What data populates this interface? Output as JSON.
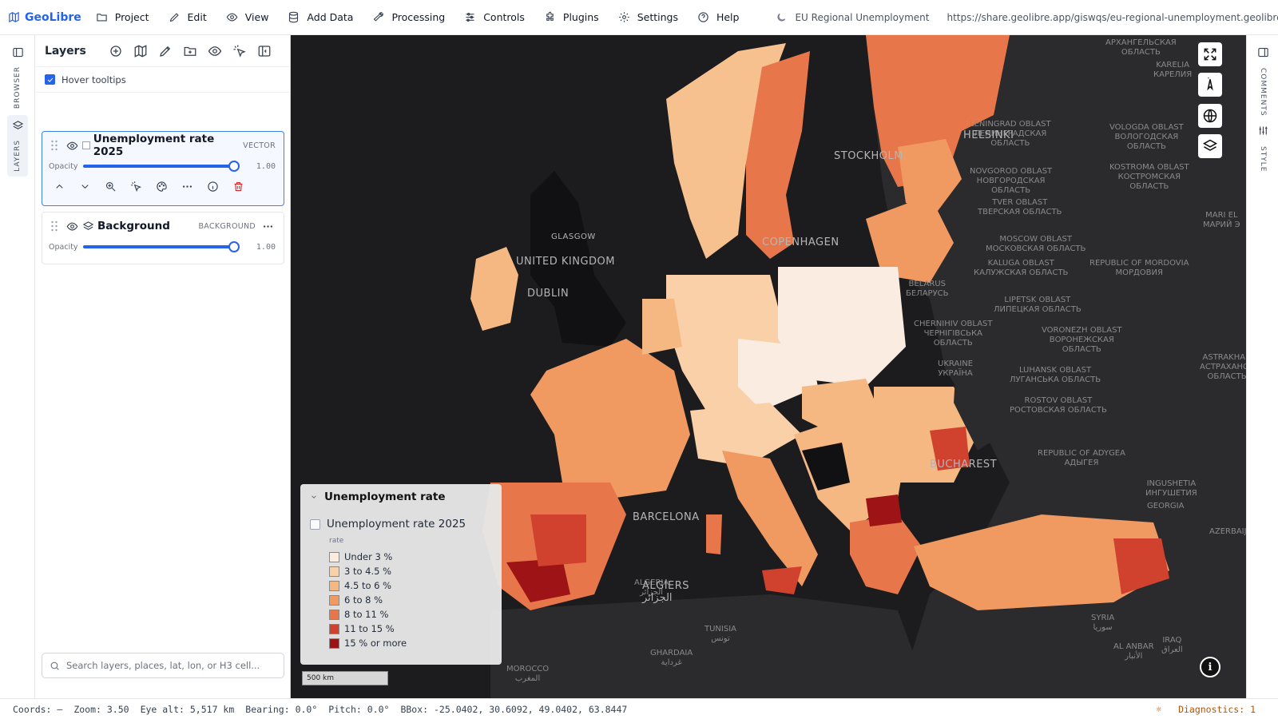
{
  "app": {
    "name": "GeoLibre",
    "project_title": "EU Regional Unemployment",
    "share_url": "https://share.geolibre.app/giswqs/eu-regional-unemployment.geolibre.json"
  },
  "menu": [
    {
      "label": "Project",
      "icon": "folder-icon"
    },
    {
      "label": "Edit",
      "icon": "pencil-icon"
    },
    {
      "label": "View",
      "icon": "eye-icon"
    },
    {
      "label": "Add Data",
      "icon": "database-icon"
    },
    {
      "label": "Processing",
      "icon": "wrench-icon"
    },
    {
      "label": "Controls",
      "icon": "sliders-icon"
    },
    {
      "label": "Plugins",
      "icon": "puzzle-icon"
    },
    {
      "label": "Settings",
      "icon": "gear-icon"
    },
    {
      "label": "Help",
      "icon": "help-circle-icon"
    }
  ],
  "left_rail": {
    "browser_label": "BROWSER",
    "layers_label": "LAYERS"
  },
  "layers_panel": {
    "title": "Layers",
    "hover_tooltips_label": "Hover tooltips",
    "hover_tooltips_checked": true,
    "opacity_label": "Opacity",
    "layers": [
      {
        "name": "Unemployment rate 2025",
        "type": "VECTOR",
        "opacity": 1.0,
        "opacity_text": "1.00",
        "visible": true
      },
      {
        "name": "Background",
        "type": "BACKGROUND",
        "opacity": 1.0,
        "opacity_text": "1.00",
        "visible": true
      }
    ],
    "search_placeholder": "Search layers, places, lat, lon, or H3 cell..."
  },
  "map": {
    "labels_regions": [
      {
        "t": "АРХАНГЕЛЬСКАЯ\nОБЛАСТЬ"
      },
      {
        "t": "KARELIA\nКАРЕЛИЯ"
      },
      {
        "t": "LENINGRAD OBLAST\nЛЕНИНГРАДСКАЯ\nОБЛАСТЬ"
      },
      {
        "t": "VOLOGDA OBLAST\nВОЛОГОДСКАЯ\nОБЛАСТЬ"
      },
      {
        "t": "NOVGOROD OBLAST\nНОВГОРОДСКАЯ\nОБЛАСТЬ"
      },
      {
        "t": "KOSTROMA OBLAST\nКОСТРОМСКАЯ\nОБЛАСТЬ"
      },
      {
        "t": "TVER OBLAST\nТВЕРСКАЯ ОБЛАСТЬ"
      },
      {
        "t": "MARI EL\nМАРИЙ Э"
      },
      {
        "t": "MOSCOW OBLAST\nМОСКОВСКАЯ ОБЛАСТЬ"
      },
      {
        "t": "KALUGA OBLAST\nКАЛУЖСКАЯ ОБЛАСТЬ"
      },
      {
        "t": "REPUBLIC OF MORDOVIA\nМОРДОВИЯ"
      },
      {
        "t": "BELARUS\nБЕЛАРУСЬ"
      },
      {
        "t": "LIPETSK OBLAST\nЛИПЕЦКАЯ ОБЛАСТЬ"
      },
      {
        "t": "CHERNIHIV OBLAST\nЧЕРНІГІВСЬКА\nОБЛАСТЬ"
      },
      {
        "t": "VORONEZH OBLAST\nВОРОНЕЖСКАЯ\nОБЛАСТЬ"
      },
      {
        "t": "UKRAINE\nУКРАЇНА"
      },
      {
        "t": "LUHANSK OBLAST\nЛУГАНСЬКА ОБЛАСТЬ"
      },
      {
        "t": "ROSTOV OBLAST\nРОСТОВСКАЯ ОБЛАСТЬ"
      },
      {
        "t": "ASTRAKHAN\nАСТРАХАНСК\nОБЛАСТЬ"
      },
      {
        "t": "REPUBLIC OF ADYGEA\nАДЫГЕЯ"
      },
      {
        "t": "INGUSHETIA\nИНГУШЕТИЯ"
      },
      {
        "t": "GEORGIA"
      },
      {
        "t": "AZERBAIJA"
      },
      {
        "t": "SYRIA\nسوريا"
      },
      {
        "t": "IRAQ\nالعراق"
      },
      {
        "t": "AL ANBAR\nالأنبار"
      },
      {
        "t": "ALGERIA\nالجزائر"
      },
      {
        "t": "GHARDAIA\nغرداية"
      },
      {
        "t": "TUNISIA\nتونس"
      },
      {
        "t": "MOROCCO\nالمغرب"
      }
    ],
    "labels_cities": [
      {
        "t": "HELSINKI"
      },
      {
        "t": "STOCKHOLM"
      },
      {
        "t": "COPENHAGEN"
      },
      {
        "t": "UNITED KINGDOM"
      },
      {
        "t": "DUBLIN"
      },
      {
        "t": "BARCELONA"
      },
      {
        "t": "ALGIERS\nالجزائر"
      },
      {
        "t": "BUCHAREST"
      },
      {
        "t": "GLASGOW"
      }
    ],
    "legend": {
      "title": "Unemployment rate",
      "layer": "Unemployment rate 2025",
      "field": "rate",
      "classes": [
        {
          "label": "Under 3 %",
          "color": "#fbece2"
        },
        {
          "label": "3 to 4.5 %",
          "color": "#f9d0a8"
        },
        {
          "label": "4.5 to 6 %",
          "color": "#f6b883"
        },
        {
          "label": "6 to 8 %",
          "color": "#f09a62"
        },
        {
          "label": "8 to 11 %",
          "color": "#e7774a"
        },
        {
          "label": "11 to 15 %",
          "color": "#d1422e"
        },
        {
          "label": "15 % or more",
          "color": "#9e1416"
        }
      ]
    },
    "scale": "500 km"
  },
  "right_rail": {
    "comments_label": "COMMENTS",
    "style_label": "STYLE"
  },
  "status": {
    "coords": "Coords: —",
    "zoom": "Zoom: 3.50",
    "eye_alt": "Eye alt: 5,517 km",
    "bearing": "Bearing: 0.0°",
    "pitch": "Pitch: 0.0°",
    "bbox": "BBox: -25.0402, 30.6092, 49.0402, 63.8447",
    "diagnostics": "Diagnostics: 1"
  }
}
